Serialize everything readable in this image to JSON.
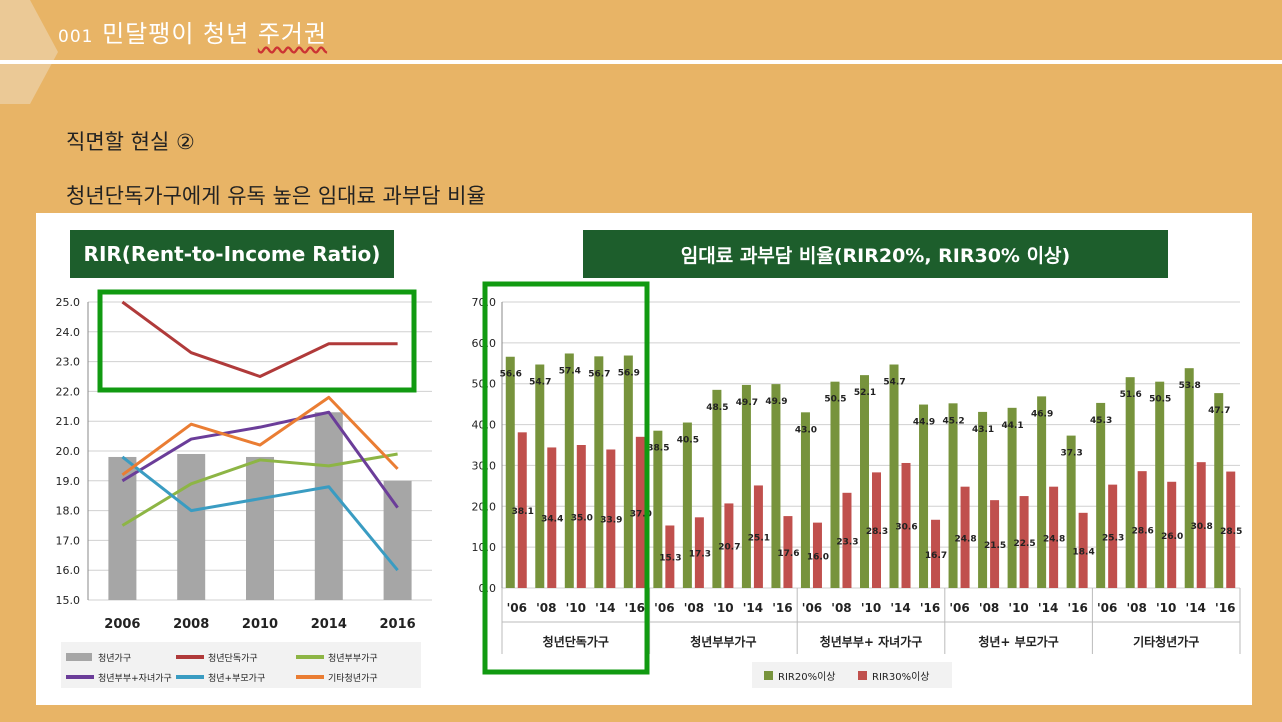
{
  "slide": {
    "title_prefix": "001",
    "title_text": "민달팽이 청년",
    "title_underlined": "주거권",
    "subtitle1": "직면할 현실 ②",
    "subtitle2": "청년단독가구에게 유독 높은 임대료 과부담 비율",
    "colors": {
      "background": "#e8b466",
      "header_box": "#1d5e2c",
      "highlight_box": "#119a11"
    }
  },
  "chart_data": [
    {
      "type": "bar",
      "title": "RIR(Rent-to-Income Ratio)",
      "categories": [
        "2006",
        "2008",
        "2010",
        "2014",
        "2016"
      ],
      "ylim": [
        15.0,
        25.0
      ],
      "yticks": [
        "15.0",
        "16.0",
        "17.0",
        "18.0",
        "19.0",
        "20.0",
        "21.0",
        "22.0",
        "23.0",
        "24.0",
        "25.0"
      ],
      "grid": true,
      "legend_position": "bottom",
      "bar_series": {
        "name": "청년가구",
        "color": "#a6a6a6",
        "values": [
          19.8,
          19.9,
          19.8,
          21.3,
          19.0
        ]
      },
      "line_series": [
        {
          "name": "청년단독가구",
          "color": "#b03a3a",
          "values": [
            25.0,
            23.3,
            22.5,
            23.6,
            23.6
          ]
        },
        {
          "name": "청년부부가구",
          "color": "#8db545",
          "values": [
            17.5,
            18.9,
            19.7,
            19.5,
            19.9
          ]
        },
        {
          "name": "청년부부+자녀가구",
          "color": "#6b3d99",
          "values": [
            19.0,
            20.4,
            20.8,
            21.3,
            18.1
          ]
        },
        {
          "name": "청년+부모가구",
          "color": "#3a9cc2",
          "values": [
            19.8,
            18.0,
            18.4,
            18.8,
            16.0
          ]
        },
        {
          "name": "기타청년가구",
          "color": "#ea7d33",
          "values": [
            19.2,
            20.9,
            20.2,
            21.8,
            19.4
          ]
        }
      ],
      "legend": [
        "청년가구",
        "청년단독가구",
        "청년부부가구",
        "청년부부+자녀가구",
        "청년+부모가구",
        "기타청년가구"
      ]
    },
    {
      "type": "bar",
      "title": "임대료 과부담 비율(RIR20%, RIR30% 이상)",
      "ylim": [
        0.0,
        70.0
      ],
      "yticks": [
        "0.0",
        "10.0",
        "20.0",
        "30.0",
        "40.0",
        "50.0",
        "60.0",
        "70.0"
      ],
      "grid": true,
      "legend_position": "bottom",
      "groups": [
        {
          "name": "청년단독가구",
          "years": [
            "'06",
            "'08",
            "'10",
            "'14",
            "'16"
          ],
          "rir20": [
            56.6,
            54.7,
            57.4,
            56.7,
            56.9
          ],
          "rir30": [
            38.1,
            34.4,
            35.0,
            33.9,
            37.0
          ]
        },
        {
          "name": "청년부부가구",
          "years": [
            "'06",
            "'08",
            "'10",
            "'14",
            "'16"
          ],
          "rir20": [
            38.5,
            40.5,
            48.5,
            49.7,
            49.9
          ],
          "rir30": [
            15.3,
            17.3,
            20.7,
            25.1,
            17.6
          ]
        },
        {
          "name": "청년부부+ 자녀가구",
          "years": [
            "'06",
            "'08",
            "'10",
            "'14",
            "'16"
          ],
          "rir20": [
            43.0,
            50.5,
            52.1,
            54.7,
            44.9
          ],
          "rir30": [
            16.0,
            23.3,
            28.3,
            30.6,
            16.7
          ]
        },
        {
          "name": "청년+ 부모가구",
          "years": [
            "'06",
            "'08",
            "'10",
            "'14",
            "'16"
          ],
          "rir20": [
            45.2,
            43.1,
            44.1,
            46.9,
            37.3
          ],
          "rir30": [
            24.8,
            21.5,
            22.5,
            24.8,
            18.4
          ]
        },
        {
          "name": "기타청년가구",
          "years": [
            "'06",
            "'08",
            "'10",
            "'14",
            "'16"
          ],
          "rir20": [
            45.3,
            51.6,
            50.5,
            53.8,
            47.7
          ],
          "rir30": [
            25.3,
            28.6,
            26.0,
            30.8,
            28.5
          ]
        }
      ],
      "series": [
        {
          "name": "RIR20%이상",
          "color": "#77933c"
        },
        {
          "name": "RIR30%이상",
          "color": "#c0504d"
        }
      ],
      "data_labels_shown": [
        "56.6",
        "54.7",
        "57.4",
        "56.7",
        "56.9",
        "38.1",
        "34.4",
        "35.0",
        "33.9",
        "37.0",
        "38.5",
        "40.5",
        "48.5",
        "49.7",
        "49.9",
        "15.3",
        "17.3",
        "20.7",
        "25.1",
        "17.6",
        "43.0",
        "50.5",
        "52.1",
        "54.7",
        "44.9",
        "16.0",
        "23.3",
        "28.3",
        "30.6",
        "16.7",
        "45.2",
        "43.1",
        "44.1",
        "46.9",
        "37.3",
        "24.8",
        "21.5",
        "22.5",
        "24.8",
        "18.4",
        "45.3",
        "51.6",
        "50.5",
        "53.8",
        "47.7",
        "25.3",
        "28.6",
        "26.0",
        "30.8",
        "28.5"
      ]
    }
  ]
}
